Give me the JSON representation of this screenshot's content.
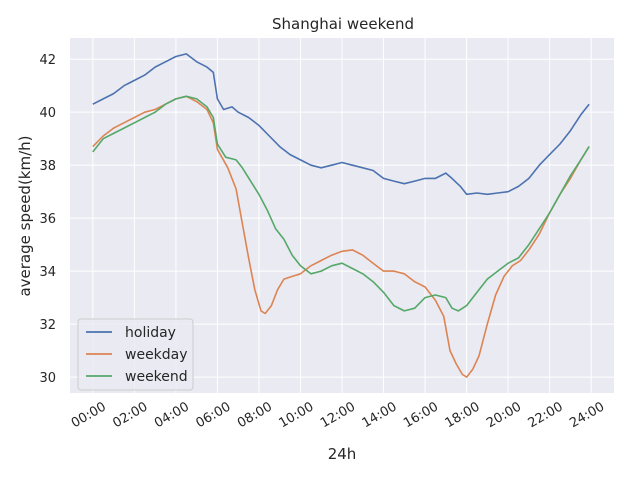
{
  "chart_data": {
    "type": "line",
    "title": "Shanghai weekend",
    "xlabel": "24h",
    "ylabel": "average speed(km/h)",
    "x_tick_labels": [
      "00:00",
      "02:00",
      "04:00",
      "06:00",
      "08:00",
      "10:00",
      "12:00",
      "14:00",
      "16:00",
      "18:00",
      "20:00",
      "22:00",
      "24:00"
    ],
    "y_tick_labels": [
      "30",
      "32",
      "34",
      "36",
      "38",
      "40",
      "42"
    ],
    "y_ticks": [
      30,
      32,
      34,
      36,
      38,
      40,
      42
    ],
    "xlim_hours": [
      -1.1,
      25.1
    ],
    "ylim": [
      29.4,
      42.8
    ],
    "grid": true,
    "legend_position": "lower left",
    "series": [
      {
        "name": "holiday",
        "color": "#4c72b0",
        "points": [
          [
            0,
            40.3
          ],
          [
            0.5,
            40.5
          ],
          [
            1,
            40.7
          ],
          [
            1.5,
            41.0
          ],
          [
            2,
            41.2
          ],
          [
            2.5,
            41.4
          ],
          [
            3,
            41.7
          ],
          [
            3.5,
            41.9
          ],
          [
            4,
            42.1
          ],
          [
            4.5,
            42.2
          ],
          [
            5,
            41.9
          ],
          [
            5.5,
            41.7
          ],
          [
            5.8,
            41.5
          ],
          [
            6,
            40.5
          ],
          [
            6.3,
            40.1
          ],
          [
            6.7,
            40.2
          ],
          [
            7,
            40.0
          ],
          [
            7.5,
            39.8
          ],
          [
            8,
            39.5
          ],
          [
            8.5,
            39.1
          ],
          [
            9,
            38.7
          ],
          [
            9.5,
            38.4
          ],
          [
            10,
            38.2
          ],
          [
            10.5,
            38.0
          ],
          [
            11,
            37.9
          ],
          [
            11.5,
            38.0
          ],
          [
            12,
            38.1
          ],
          [
            12.5,
            38.0
          ],
          [
            13,
            37.9
          ],
          [
            13.5,
            37.8
          ],
          [
            14,
            37.5
          ],
          [
            14.5,
            37.4
          ],
          [
            15,
            37.3
          ],
          [
            15.5,
            37.4
          ],
          [
            16,
            37.5
          ],
          [
            16.5,
            37.5
          ],
          [
            17,
            37.7
          ],
          [
            17.3,
            37.5
          ],
          [
            17.7,
            37.2
          ],
          [
            18,
            36.9
          ],
          [
            18.5,
            36.95
          ],
          [
            19,
            36.9
          ],
          [
            19.5,
            36.95
          ],
          [
            20,
            37.0
          ],
          [
            20.5,
            37.2
          ],
          [
            21,
            37.5
          ],
          [
            21.5,
            38.0
          ],
          [
            22,
            38.4
          ],
          [
            22.5,
            38.8
          ],
          [
            23,
            39.3
          ],
          [
            23.5,
            39.9
          ],
          [
            23.9,
            40.3
          ]
        ]
      },
      {
        "name": "weekday",
        "color": "#dd8452",
        "points": [
          [
            0,
            38.7
          ],
          [
            0.5,
            39.1
          ],
          [
            1,
            39.4
          ],
          [
            1.5,
            39.6
          ],
          [
            2,
            39.8
          ],
          [
            2.5,
            40.0
          ],
          [
            3,
            40.1
          ],
          [
            3.5,
            40.3
          ],
          [
            4,
            40.5
          ],
          [
            4.5,
            40.6
          ],
          [
            5,
            40.4
          ],
          [
            5.5,
            40.1
          ],
          [
            5.8,
            39.6
          ],
          [
            6,
            38.6
          ],
          [
            6.5,
            37.9
          ],
          [
            6.9,
            37.1
          ],
          [
            7.2,
            35.8
          ],
          [
            7.5,
            34.5
          ],
          [
            7.8,
            33.3
          ],
          [
            8.1,
            32.5
          ],
          [
            8.3,
            32.4
          ],
          [
            8.6,
            32.7
          ],
          [
            8.9,
            33.3
          ],
          [
            9.2,
            33.7
          ],
          [
            9.6,
            33.8
          ],
          [
            10,
            33.9
          ],
          [
            10.5,
            34.2
          ],
          [
            11,
            34.4
          ],
          [
            11.5,
            34.6
          ],
          [
            12,
            34.75
          ],
          [
            12.5,
            34.8
          ],
          [
            13,
            34.6
          ],
          [
            13.5,
            34.3
          ],
          [
            14,
            34.0
          ],
          [
            14.5,
            34.0
          ],
          [
            15,
            33.9
          ],
          [
            15.5,
            33.6
          ],
          [
            16,
            33.4
          ],
          [
            16.5,
            32.9
          ],
          [
            16.9,
            32.3
          ],
          [
            17.2,
            31.0
          ],
          [
            17.5,
            30.5
          ],
          [
            17.8,
            30.1
          ],
          [
            18,
            30.0
          ],
          [
            18.3,
            30.3
          ],
          [
            18.6,
            30.8
          ],
          [
            19,
            32.0
          ],
          [
            19.4,
            33.1
          ],
          [
            19.8,
            33.8
          ],
          [
            20.2,
            34.2
          ],
          [
            20.6,
            34.4
          ],
          [
            21,
            34.8
          ],
          [
            21.5,
            35.4
          ],
          [
            22,
            36.2
          ],
          [
            22.5,
            36.9
          ],
          [
            23,
            37.5
          ],
          [
            23.5,
            38.2
          ],
          [
            23.9,
            38.7
          ]
        ]
      },
      {
        "name": "weekend",
        "color": "#55a868",
        "points": [
          [
            0,
            38.5
          ],
          [
            0.5,
            39.0
          ],
          [
            1,
            39.2
          ],
          [
            1.5,
            39.4
          ],
          [
            2,
            39.6
          ],
          [
            2.5,
            39.8
          ],
          [
            3,
            40.0
          ],
          [
            3.5,
            40.3
          ],
          [
            4,
            40.5
          ],
          [
            4.5,
            40.6
          ],
          [
            5,
            40.5
          ],
          [
            5.5,
            40.2
          ],
          [
            5.8,
            39.8
          ],
          [
            6,
            38.8
          ],
          [
            6.4,
            38.3
          ],
          [
            6.9,
            38.2
          ],
          [
            7.2,
            37.9
          ],
          [
            7.6,
            37.4
          ],
          [
            8,
            36.9
          ],
          [
            8.4,
            36.3
          ],
          [
            8.8,
            35.6
          ],
          [
            9.2,
            35.2
          ],
          [
            9.6,
            34.6
          ],
          [
            10,
            34.2
          ],
          [
            10.5,
            33.9
          ],
          [
            11,
            34.0
          ],
          [
            11.5,
            34.2
          ],
          [
            12,
            34.3
          ],
          [
            12.5,
            34.1
          ],
          [
            13,
            33.9
          ],
          [
            13.5,
            33.6
          ],
          [
            14,
            33.2
          ],
          [
            14.5,
            32.7
          ],
          [
            15,
            32.5
          ],
          [
            15.5,
            32.6
          ],
          [
            16,
            33.0
          ],
          [
            16.5,
            33.1
          ],
          [
            17,
            33.0
          ],
          [
            17.3,
            32.6
          ],
          [
            17.6,
            32.5
          ],
          [
            18,
            32.7
          ],
          [
            18.5,
            33.2
          ],
          [
            19,
            33.7
          ],
          [
            19.5,
            34.0
          ],
          [
            20,
            34.3
          ],
          [
            20.5,
            34.5
          ],
          [
            21,
            35.0
          ],
          [
            21.5,
            35.6
          ],
          [
            22,
            36.2
          ],
          [
            22.5,
            36.9
          ],
          [
            23,
            37.6
          ],
          [
            23.5,
            38.2
          ],
          [
            23.9,
            38.7
          ]
        ]
      }
    ]
  }
}
